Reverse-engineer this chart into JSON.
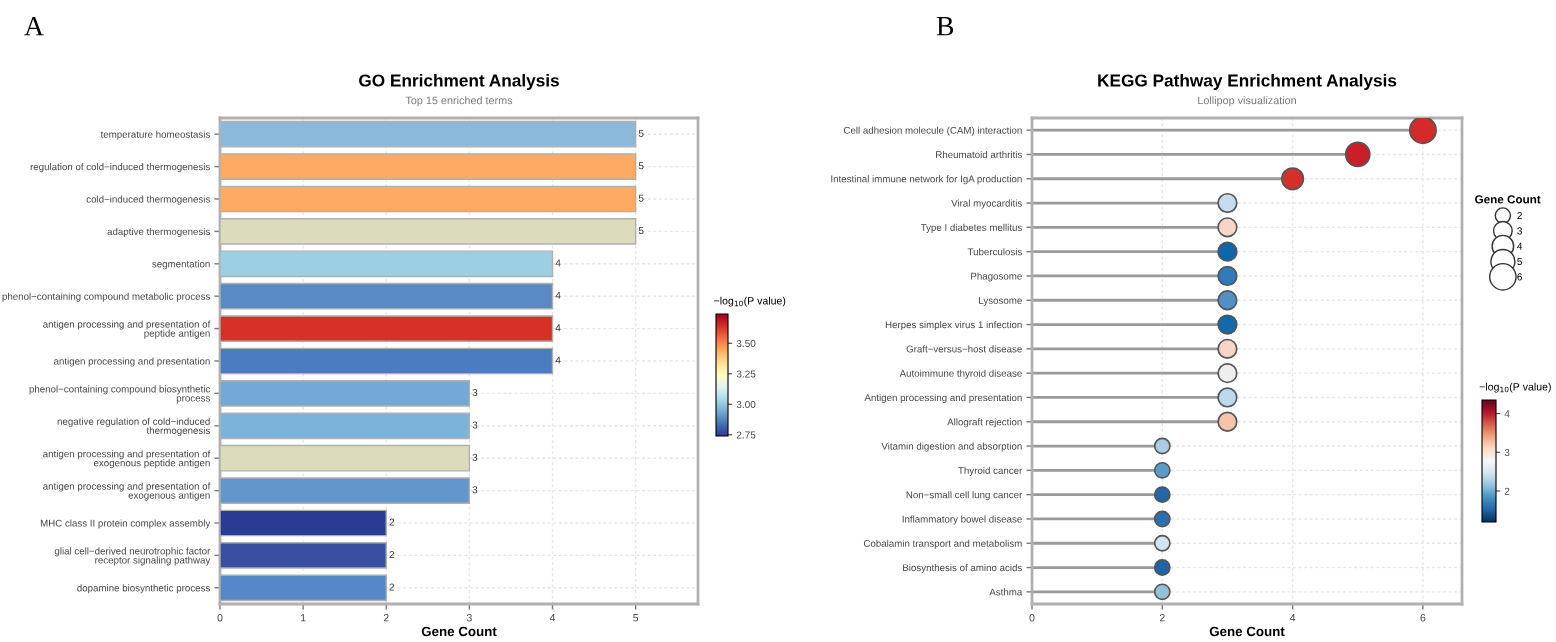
{
  "chart_data": [
    {
      "type": "bar",
      "orientation": "horizontal",
      "title": "GO Enrichment Analysis",
      "subtitle": "Top 15 enriched terms",
      "xlabel": "Gene Count",
      "annotations": [
        "A"
      ],
      "categories": [
        "temperature homeostasis",
        "regulation of cold−induced thermogenesis",
        "cold−induced thermogenesis",
        "adaptive thermogenesis",
        "segmentation",
        "phenol−containing compound metabolic process",
        "antigen processing and presentation of\npeptide antigen",
        "antigen processing and presentation",
        "phenol−containing compound biosynthetic\nprocess",
        "negative regulation of cold−induced\nthermogenesis",
        "antigen processing and presentation of\nexogenous peptide antigen",
        "antigen processing and presentation of\nexogenous antigen",
        "MHC class II protein complex assembly",
        "glial cell−derived neurotrophic factor\nreceptor signaling pathway",
        "dopamine biosynthetic process"
      ],
      "values": [
        5,
        5,
        5,
        5,
        4,
        4,
        4,
        4,
        3,
        3,
        3,
        3,
        2,
        2,
        2
      ],
      "colors": [
        "#8ab9dc",
        "#fdaa62",
        "#fdaa62",
        "#dcdcbc",
        "#9ccfe4",
        "#5a8ac4",
        "#d73027",
        "#4a7cbf",
        "#74a9d6",
        "#7cb3da",
        "#dcdcbc",
        "#6396cc",
        "#2b3a93",
        "#3a4fa0",
        "#5588c8"
      ],
      "data_labels": true,
      "xlim": [
        0,
        5.75
      ],
      "xticks": [
        0,
        1,
        2,
        3,
        4,
        5
      ],
      "grid": true,
      "clabel": "−log$_{10}$(P value)",
      "clim": [
        2.74,
        3.74
      ],
      "cticks": [
        {
          "value": 2.75,
          "label": "2.75"
        },
        {
          "value": 3.0,
          "label": "3.00"
        },
        {
          "value": 3.25,
          "label": "3.25"
        },
        {
          "value": 3.5,
          "label": "3.50"
        }
      ]
    },
    {
      "type": "lollipop",
      "orientation": "horizontal",
      "title": "KEGG Pathway Enrichment Analysis",
      "subtitle": "Lollipop visualization",
      "xlabel": "Gene Count",
      "annotations": [
        "B"
      ],
      "categories": [
        "Cell adhesion molecule (CAM) interaction",
        "Rheumatoid arthritis",
        "Intestinal immune network for IgA production",
        "Viral myocarditis",
        "Type I diabetes mellitus",
        "Tuberculosis",
        "Phagosome",
        "Lysosome",
        "Herpes simplex virus 1 infection",
        "Graft−versus−host disease",
        "Autoimmune thyroid disease",
        "Antigen processing and presentation",
        "Allograft rejection",
        "Vitamin digestion and absorption",
        "Thyroid cancer",
        "Non−small cell lung cancer",
        "Inflammatory bowel disease",
        "Cobalamin transport and metabolism",
        "Biosynthesis of amino acids",
        "Asthma"
      ],
      "values": [
        6,
        5,
        4,
        3,
        3,
        3,
        3,
        3,
        3,
        3,
        3,
        3,
        3,
        2,
        2,
        2,
        2,
        2,
        2,
        2
      ],
      "sizes": [
        6,
        5,
        4,
        3,
        3,
        3,
        3,
        3,
        3,
        3,
        3,
        3,
        3,
        2,
        2,
        2,
        2,
        2,
        2,
        2
      ],
      "size_legend": [
        2,
        3,
        4,
        5,
        6
      ],
      "legend_title": "Gene Count",
      "colors": [
        "#d42a2a",
        "#cc1d2b",
        "#d3302c",
        "#c6dbec",
        "#f7d6c8",
        "#0f66ad",
        "#2f7bbb",
        "#4f90c6",
        "#1169ae",
        "#f8d5c6",
        "#eeeeee",
        "#bcd8ea",
        "#f6c3ac",
        "#a8cde4",
        "#5b9bcb",
        "#2166ac",
        "#2a6fb2",
        "#d3e3ef",
        "#1d64a8",
        "#92c2de"
      ],
      "xlim": [
        0,
        6.6
      ],
      "xticks": [
        0,
        2,
        4,
        6
      ],
      "grid": true,
      "clabel": "−log$_{10}$(P value)",
      "clim": [
        1.2,
        4.35
      ],
      "cticks": [
        2,
        3,
        4
      ]
    }
  ]
}
